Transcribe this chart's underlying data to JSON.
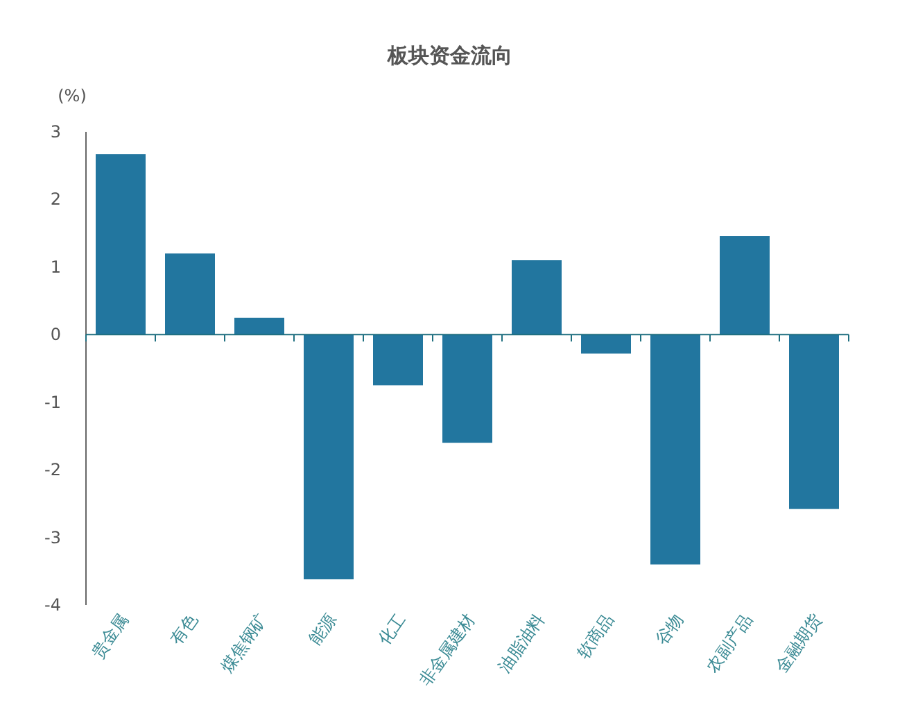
{
  "chart_data": {
    "type": "bar",
    "title": "板块资金流向",
    "ylabel": "(%)",
    "categories": [
      "贵金属",
      "有色",
      "煤焦钢矿",
      "能源",
      "化工",
      "非金属建材",
      "油脂油料",
      "软商品",
      "谷物",
      "农副产品",
      "金融期货"
    ],
    "values": [
      2.67,
      1.2,
      0.25,
      -3.62,
      -0.75,
      -1.6,
      1.1,
      -0.28,
      -3.4,
      1.46,
      -2.58
    ],
    "color": "#22769f",
    "ylim": [
      -4,
      3
    ],
    "yticks": [
      -4,
      -3,
      -2,
      -1,
      0,
      1,
      2,
      3
    ],
    "grid": false,
    "ref_lines": [
      {
        "axis": "y",
        "value": 0,
        "color": "#1f6f80"
      }
    ]
  }
}
